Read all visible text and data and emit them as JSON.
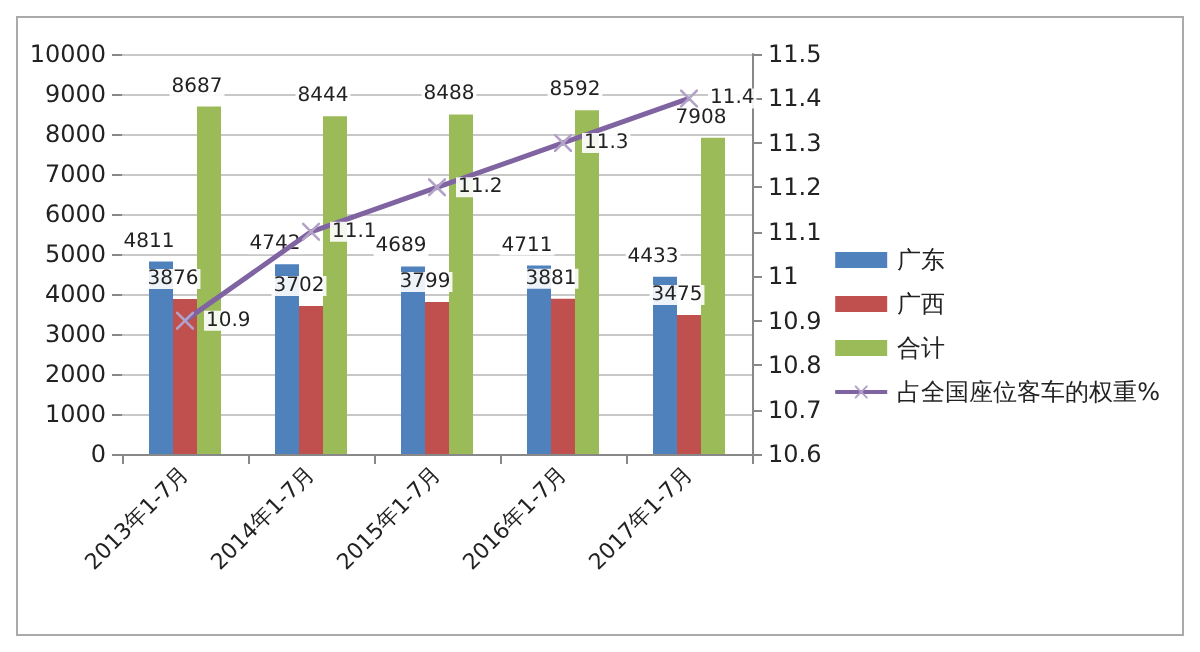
{
  "chart_data": {
    "type": "bar",
    "categories": [
      "2013年1-7月",
      "2014年1-7月",
      "2015年1-7月",
      "2016年1-7月",
      "2017年1-7月"
    ],
    "series": [
      {
        "name": "广东",
        "color": "#4f81bd",
        "values": [
          4811,
          4742,
          4689,
          4711,
          4433
        ]
      },
      {
        "name": "广西",
        "color": "#c0504d",
        "values": [
          3876,
          3702,
          3799,
          3881,
          3475
        ]
      },
      {
        "name": "合计",
        "color": "#9bbb59",
        "values": [
          8687,
          8444,
          8488,
          8592,
          7908
        ]
      },
      {
        "name": "占全国座位客车的权重%",
        "type": "line",
        "axis": "y2",
        "color": "#8064a2",
        "marker": "cross",
        "values": [
          10.9,
          11.1,
          11.2,
          11.3,
          11.4
        ]
      }
    ],
    "ylim": [
      0,
      10000
    ],
    "yticks": [
      0,
      1000,
      2000,
      3000,
      4000,
      5000,
      6000,
      7000,
      8000,
      9000,
      10000
    ],
    "y2lim": [
      10.6,
      11.5
    ],
    "y2ticks": [
      10.6,
      10.7,
      10.8,
      10.9,
      11,
      11.1,
      11.2,
      11.3,
      11.4,
      11.5
    ],
    "grid": "y",
    "legend": "right",
    "data_labels": true
  }
}
